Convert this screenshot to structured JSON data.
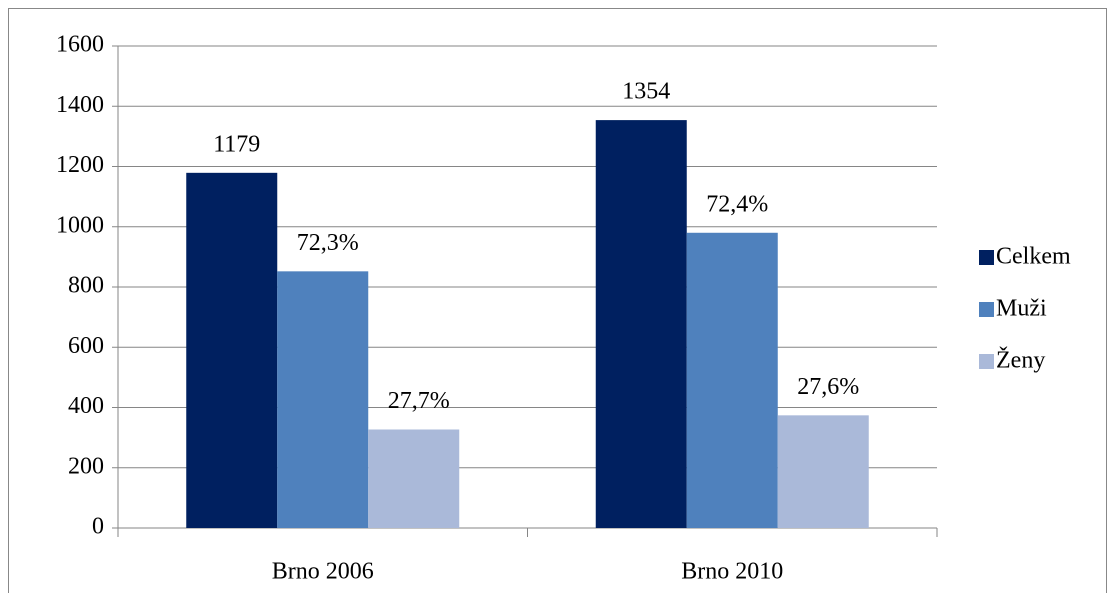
{
  "chart_data": {
    "type": "bar",
    "categories": [
      "Brno 2006",
      "Brno 2010"
    ],
    "series": [
      {
        "name": "Celkem",
        "color": "#002060",
        "values": [
          1179,
          1354
        ]
      },
      {
        "name": "Muži",
        "color": "#4f81bd",
        "values": [
          852,
          980
        ],
        "value_labels": [
          "72,3%",
          "72,4%"
        ]
      },
      {
        "name": "Ženy",
        "color": "#aab9d9",
        "values": [
          327,
          374
        ],
        "value_labels": [
          "27,7%",
          "27,6%"
        ]
      }
    ],
    "ylim": [
      0,
      1600
    ],
    "yticks": [
      0,
      200,
      400,
      600,
      800,
      1000,
      1200,
      1400,
      1600
    ],
    "grid": true,
    "legend": "right"
  }
}
